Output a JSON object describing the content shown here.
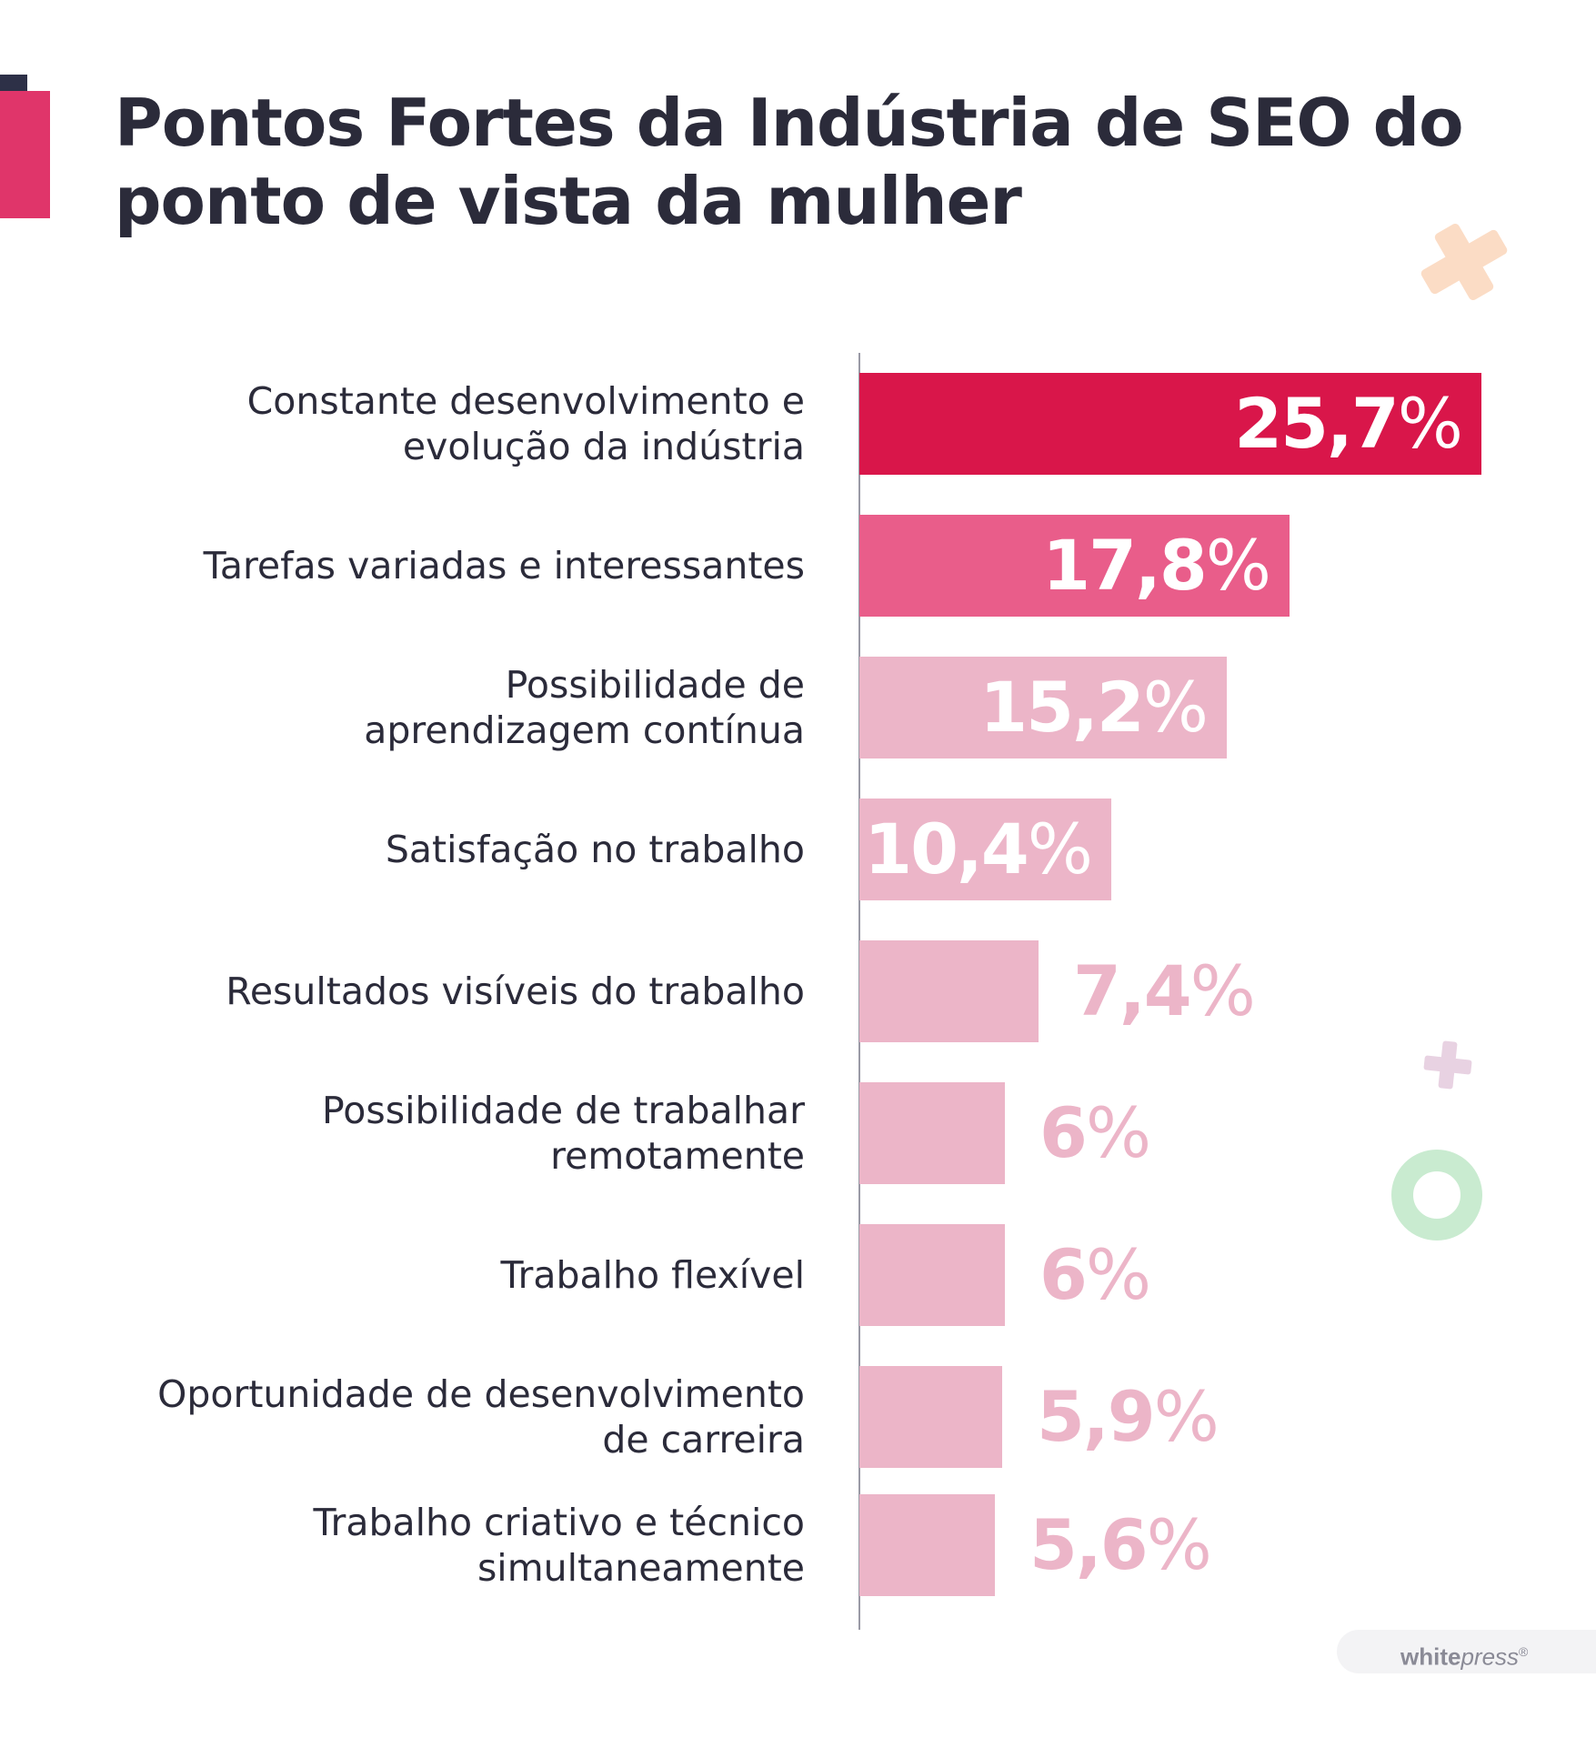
{
  "title_lines": [
    "Pontos Fortes da Indústria de SEO do",
    "ponto de vista da mulher"
  ],
  "colors": {
    "top": "#d9164a",
    "second": "#e95d8a",
    "rest": "#ecb5c8",
    "value_on_bar": "#ffffff",
    "value_outside": "#ecb5c8"
  },
  "chart_data": {
    "type": "bar",
    "orientation": "horizontal",
    "categories": [
      [
        "Constante desenvolvimento e",
        "evolução da indústria"
      ],
      [
        "Tarefas variadas e interessantes"
      ],
      [
        "Possibilidade de",
        "aprendizagem contínua"
      ],
      [
        "Satisfação no trabalho"
      ],
      [
        "Resultados visíveis do trabalho"
      ],
      [
        "Possibilidade de trabalhar",
        "remotamente"
      ],
      [
        "Trabalho flexível"
      ],
      [
        "Oportunidade de desenvolvimento",
        "de carreira"
      ],
      [
        "Trabalho criativo e técnico",
        "simultaneamente"
      ]
    ],
    "values": [
      25.7,
      17.8,
      15.2,
      10.4,
      7.4,
      6,
      6,
      5.9,
      5.6
    ],
    "value_labels": [
      "25,7",
      "17,8",
      "15,2",
      "10,4",
      "7,4",
      "6",
      "6",
      "5,9",
      "5,6"
    ],
    "unit": "%",
    "grid": false,
    "legend": "none"
  },
  "decorations": {
    "cross_icon": "cross-icon",
    "plus_icon": "plus-icon",
    "ring_icon": "ring-icon"
  },
  "logo": {
    "brand_a": "white",
    "brand_b": "press",
    "mark": "®"
  }
}
